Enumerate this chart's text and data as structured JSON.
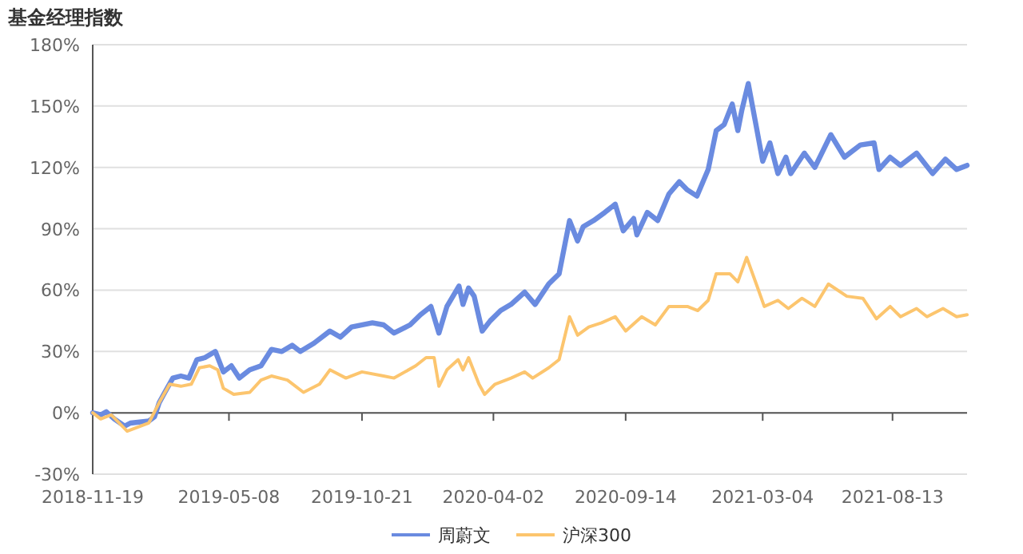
{
  "chart_data": {
    "type": "line",
    "title": "基金经理指数",
    "xlim": [
      "2018-11-19",
      "2021-11-14"
    ],
    "xticks": [
      {
        "value": "2018-11-19",
        "label": "2018-11-19"
      },
      {
        "value": "2019-05-08",
        "label": "2019-05-08"
      },
      {
        "value": "2019-10-21",
        "label": "2019-10-21"
      },
      {
        "value": "2020-04-02",
        "label": "2020-04-02"
      },
      {
        "value": "2020-09-14",
        "label": "2020-09-14"
      },
      {
        "value": "2021-03-04",
        "label": "2021-03-04"
      },
      {
        "value": "2021-08-13",
        "label": "2021-08-13"
      }
    ],
    "ylim": [
      -30,
      180
    ],
    "yticks": [
      {
        "value": -30,
        "label": "-30%"
      },
      {
        "value": 0,
        "label": "0%"
      },
      {
        "value": 30,
        "label": "30%"
      },
      {
        "value": 60,
        "label": "60%"
      },
      {
        "value": 90,
        "label": "90%"
      },
      {
        "value": 120,
        "label": "120%"
      },
      {
        "value": 150,
        "label": "150%"
      },
      {
        "value": 180,
        "label": "180%"
      }
    ],
    "grid": "y",
    "legend": "bottom",
    "marker": "none",
    "line_style": "solid",
    "series": [
      {
        "name": "周蔚文",
        "color": "#6a8be0",
        "x": [
          "2018-11-19",
          "2018-11-29",
          "2018-12-06",
          "2018-12-16",
          "2018-12-29",
          "2019-01-05",
          "2019-01-28",
          "2019-02-04",
          "2019-02-10",
          "2019-02-17",
          "2019-02-27",
          "2019-03-09",
          "2019-03-19",
          "2019-03-29",
          "2019-04-08",
          "2019-04-21",
          "2019-05-01",
          "2019-05-11",
          "2019-05-21",
          "2019-06-03",
          "2019-06-17",
          "2019-06-30",
          "2019-07-13",
          "2019-07-26",
          "2019-08-05",
          "2019-08-22",
          "2019-09-11",
          "2019-09-24",
          "2019-10-08",
          "2019-11-03",
          "2019-11-17",
          "2019-11-30",
          "2019-12-20",
          "2020-01-02",
          "2020-01-15",
          "2020-01-25",
          "2020-02-04",
          "2020-02-19",
          "2020-02-24",
          "2020-03-02",
          "2020-03-09",
          "2020-03-19",
          "2020-03-29",
          "2020-04-11",
          "2020-04-24",
          "2020-05-11",
          "2020-05-24",
          "2020-06-10",
          "2020-06-23",
          "2020-07-06",
          "2020-07-16",
          "2020-07-23",
          "2020-08-05",
          "2020-08-19",
          "2020-09-01",
          "2020-09-11",
          "2020-09-24",
          "2020-09-28",
          "2020-10-11",
          "2020-10-24",
          "2020-11-07",
          "2020-11-20",
          "2020-11-30",
          "2020-12-12",
          "2020-12-26",
          "2021-01-05",
          "2021-01-15",
          "2021-01-25",
          "2021-02-01",
          "2021-02-06",
          "2021-02-14",
          "2021-02-24",
          "2021-03-04",
          "2021-03-13",
          "2021-03-23",
          "2021-04-02",
          "2021-04-08",
          "2021-04-25",
          "2021-05-08",
          "2021-05-28",
          "2021-06-14",
          "2021-07-04",
          "2021-07-21",
          "2021-07-27",
          "2021-08-10",
          "2021-08-23",
          "2021-09-12",
          "2021-10-02",
          "2021-10-18",
          "2021-11-01",
          "2021-11-14"
        ],
        "values": [
          0,
          -1,
          0.5,
          -3,
          -6.5,
          -5,
          -4,
          -2,
          5,
          10,
          17,
          18,
          17,
          26,
          27,
          30,
          20,
          23,
          17,
          21,
          23,
          31,
          30,
          33,
          30,
          34,
          40,
          37,
          42,
          44,
          43,
          39,
          43,
          48,
          52,
          39,
          52,
          62,
          53,
          61,
          57,
          40,
          45,
          50,
          53,
          59,
          53,
          63,
          68,
          94,
          84,
          91,
          94,
          98,
          102,
          89,
          95,
          87,
          98,
          94,
          107,
          113,
          109,
          106,
          119,
          138,
          141,
          151,
          138,
          148,
          161,
          140,
          123,
          132,
          117,
          125,
          117,
          127,
          120,
          136,
          125,
          131,
          132,
          119,
          125,
          121,
          127,
          117,
          124,
          119,
          121
        ]
      },
      {
        "name": "沪深300",
        "color": "#fcc56e",
        "x": [
          "2018-11-19",
          "2018-11-29",
          "2018-12-12",
          "2019-01-01",
          "2019-01-28",
          "2019-02-10",
          "2019-02-23",
          "2019-03-09",
          "2019-03-22",
          "2019-04-01",
          "2019-04-14",
          "2019-04-24",
          "2019-05-01",
          "2019-05-14",
          "2019-06-03",
          "2019-06-17",
          "2019-06-30",
          "2019-07-20",
          "2019-08-09",
          "2019-08-29",
          "2019-09-11",
          "2019-10-01",
          "2019-10-21",
          "2019-11-17",
          "2019-11-30",
          "2019-12-27",
          "2020-01-09",
          "2020-01-19",
          "2020-01-25",
          "2020-02-04",
          "2020-02-18",
          "2020-02-24",
          "2020-03-02",
          "2020-03-15",
          "2020-03-22",
          "2020-04-04",
          "2020-04-24",
          "2020-05-11",
          "2020-05-21",
          "2020-06-10",
          "2020-06-23",
          "2020-07-06",
          "2020-07-16",
          "2020-07-30",
          "2020-08-15",
          "2020-09-01",
          "2020-09-14",
          "2020-10-04",
          "2020-10-21",
          "2020-11-07",
          "2020-11-30",
          "2020-12-13",
          "2020-12-26",
          "2021-01-05",
          "2021-01-22",
          "2021-02-01",
          "2021-02-12",
          "2021-02-24",
          "2021-03-06",
          "2021-03-23",
          "2021-04-05",
          "2021-04-22",
          "2021-05-08",
          "2021-05-25",
          "2021-06-17",
          "2021-07-07",
          "2021-07-24",
          "2021-08-10",
          "2021-08-23",
          "2021-09-12",
          "2021-09-25",
          "2021-10-15",
          "2021-11-01",
          "2021-11-14"
        ],
        "values": [
          0,
          -3,
          -1,
          -9,
          -5,
          5,
          14,
          13,
          14,
          22,
          23,
          21,
          12,
          9,
          10,
          16,
          18,
          16,
          10,
          14,
          21,
          17,
          20,
          18,
          17,
          23,
          27,
          27,
          13,
          21,
          26,
          21,
          27,
          14,
          9,
          14,
          17,
          20,
          17,
          22,
          26,
          47,
          38,
          42,
          44,
          47,
          40,
          47,
          43,
          52,
          52,
          50,
          55,
          68,
          68,
          64,
          76,
          63,
          52,
          55,
          51,
          56,
          52,
          63,
          57,
          56,
          46,
          52,
          47,
          51,
          47,
          51,
          47,
          48
        ]
      }
    ]
  }
}
